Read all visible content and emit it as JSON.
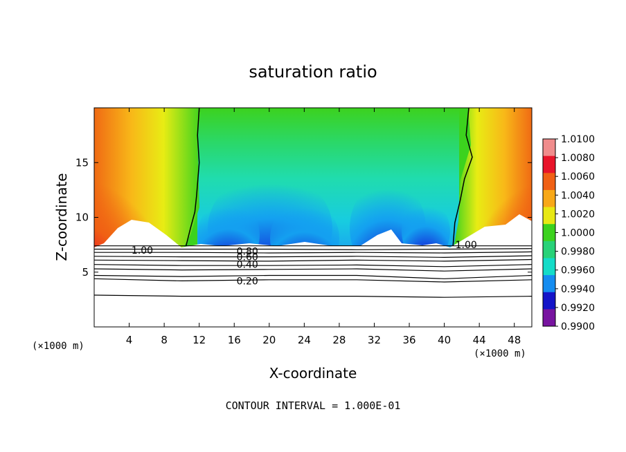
{
  "chart_data": {
    "type": "heatmap",
    "title": "saturation ratio",
    "xlabel": "X-coordinate",
    "ylabel": "Z-coordinate",
    "x_unit_left": "(×1000 m)",
    "x_unit_right": "(×1000 m)",
    "xlim": [
      0,
      50
    ],
    "ylim": [
      0,
      20
    ],
    "x_ticks": [
      "4",
      "8",
      "12",
      "16",
      "20",
      "24",
      "28",
      "32",
      "36",
      "40",
      "44",
      "48"
    ],
    "x_tick_values": [
      4,
      8,
      12,
      16,
      20,
      24,
      28,
      32,
      36,
      40,
      44,
      48
    ],
    "y_ticks": [
      "5",
      "10",
      "15"
    ],
    "y_tick_values": [
      5,
      10,
      15
    ],
    "colorbar": {
      "labels": [
        "1.0100",
        "1.0080",
        "1.0060",
        "1.0040",
        "1.0020",
        "1.0000",
        "0.9980",
        "0.9960",
        "0.9940",
        "0.9920",
        "0.9900"
      ],
      "values": [
        1.01,
        1.008,
        1.006,
        1.004,
        1.002,
        1.0,
        0.998,
        0.996,
        0.994,
        0.992,
        0.99
      ],
      "colors": [
        "#f08c8c",
        "#e8142a",
        "#f06014",
        "#f8a818",
        "#e8e814",
        "#3cd21e",
        "#28d278",
        "#14dcc8",
        "#148cf0",
        "#1414c8",
        "#7814a0"
      ]
    },
    "contour_labels": [
      "1.00",
      "0.80",
      "0.60",
      "0.40",
      "0.20",
      "1.00"
    ],
    "contour_label_values": [
      1.0,
      0.8,
      0.6,
      0.4,
      0.2,
      1.0
    ],
    "contour_label_x": [
      5.5,
      17.5,
      17.5,
      17.5,
      17.5,
      42.5
    ],
    "contour_label_y": [
      7.0,
      6.9,
      6.4,
      5.7,
      4.2,
      7.5
    ],
    "contour_lines": [
      {
        "level": 1.0,
        "x": [
          0,
          10,
          20,
          30,
          40,
          50
        ],
        "z": [
          7.4,
          7.4,
          7.4,
          7.4,
          7.4,
          7.4
        ]
      },
      {
        "level": 0.9,
        "x": [
          0,
          10,
          20,
          30,
          40,
          50
        ],
        "z": [
          7.1,
          7.1,
          7.1,
          7.05,
          7.1,
          7.15
        ]
      },
      {
        "level": 0.8,
        "x": [
          0,
          10,
          20,
          30,
          40,
          50
        ],
        "z": [
          6.8,
          6.8,
          6.75,
          6.8,
          6.75,
          6.85
        ]
      },
      {
        "level": 0.7,
        "x": [
          0,
          10,
          20,
          30,
          40,
          50
        ],
        "z": [
          6.45,
          6.4,
          6.4,
          6.45,
          6.35,
          6.5
        ]
      },
      {
        "level": 0.6,
        "x": [
          0,
          10,
          20,
          30,
          40,
          50
        ],
        "z": [
          6.1,
          6.05,
          6.0,
          6.1,
          6.0,
          6.15
        ]
      },
      {
        "level": 0.5,
        "x": [
          0,
          10,
          20,
          30,
          40,
          50
        ],
        "z": [
          5.7,
          5.6,
          5.6,
          5.65,
          5.5,
          5.7
        ]
      },
      {
        "level": 0.4,
        "x": [
          0,
          10,
          20,
          30,
          40,
          50
        ],
        "z": [
          5.3,
          5.2,
          5.25,
          5.3,
          5.1,
          5.3
        ]
      },
      {
        "level": 0.3,
        "x": [
          0,
          10,
          20,
          30,
          40,
          50
        ],
        "z": [
          4.7,
          4.6,
          4.7,
          4.7,
          4.4,
          4.7
        ]
      },
      {
        "level": 0.2,
        "x": [
          0,
          10,
          20,
          30,
          40,
          50
        ],
        "z": [
          4.4,
          4.2,
          4.3,
          4.3,
          4.1,
          4.3
        ]
      },
      {
        "level": 0.1,
        "x": [
          0,
          10,
          20,
          30,
          40,
          50
        ],
        "z": [
          2.9,
          2.8,
          2.8,
          2.8,
          2.7,
          2.8
        ]
      }
    ],
    "boundary_contour_x": [
      [
        12.0,
        11.8,
        12.0,
        11.7,
        11.5,
        11.0,
        10.5
      ],
      [
        42.8,
        42.5,
        43.2,
        42.3,
        41.8,
        41.2,
        41.0
      ]
    ],
    "boundary_contour_z": [
      [
        20.0,
        17.5,
        15.0,
        12.0,
        10.5,
        9.0,
        7.4
      ],
      [
        20.0,
        17.5,
        15.5,
        13.5,
        11.5,
        9.5,
        7.4
      ]
    ],
    "grid": false,
    "legend": "colorbar-right"
  },
  "footer": {
    "contour_interval": "CONTOUR INTERVAL = 1.000E-01"
  }
}
